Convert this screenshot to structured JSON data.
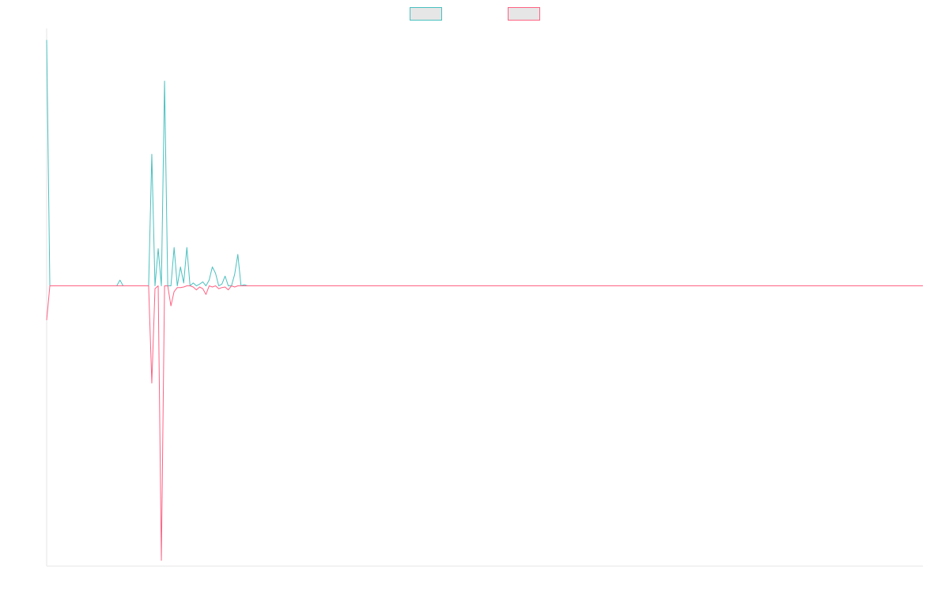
{
  "chart_data": {
    "type": "line",
    "title": "",
    "xlabel": "",
    "ylabel": "",
    "grid": false,
    "legend_position": "top-center",
    "x_count": 276,
    "xlim": [
      0,
      275
    ],
    "ylim": [
      -49,
      45
    ],
    "series": [
      {
        "color": "#4bc0c0",
        "fill": "#e6e6e6",
        "points": [
          [
            0,
            43
          ],
          [
            1,
            0
          ],
          [
            22,
            0
          ],
          [
            23,
            1
          ],
          [
            24,
            0
          ],
          [
            32,
            0
          ],
          [
            33,
            23
          ],
          [
            34,
            0
          ],
          [
            35,
            6.5
          ],
          [
            36,
            0
          ],
          [
            37,
            35.8
          ],
          [
            38,
            0
          ],
          [
            39,
            0
          ],
          [
            40,
            6.7
          ],
          [
            41,
            0
          ],
          [
            42,
            3.3
          ],
          [
            43,
            0.5
          ],
          [
            44,
            6.7
          ],
          [
            45,
            0
          ],
          [
            46,
            0.5
          ],
          [
            47,
            0
          ],
          [
            48,
            0.3
          ],
          [
            49,
            0.7
          ],
          [
            50,
            0
          ],
          [
            51,
            1
          ],
          [
            52,
            3.3
          ],
          [
            53,
            2.2
          ],
          [
            54,
            0
          ],
          [
            55,
            0.3
          ],
          [
            56,
            1.7
          ],
          [
            57,
            0
          ],
          [
            58,
            0
          ],
          [
            59,
            2
          ],
          [
            60,
            5.5
          ],
          [
            61,
            0
          ],
          [
            62,
            0.2
          ],
          [
            63,
            0
          ],
          [
            275,
            0
          ]
        ]
      },
      {
        "color": "#ff6384",
        "fill": "#e6e6e6",
        "points": [
          [
            0,
            -6
          ],
          [
            1,
            0
          ],
          [
            32,
            0
          ],
          [
            33,
            -17
          ],
          [
            34,
            -0.5
          ],
          [
            35,
            0
          ],
          [
            36,
            -48
          ],
          [
            37,
            0
          ],
          [
            38,
            0
          ],
          [
            39,
            -3.5
          ],
          [
            40,
            -1
          ],
          [
            41,
            -0.3
          ],
          [
            42,
            -0.3
          ],
          [
            43,
            -0.2
          ],
          [
            44,
            0
          ],
          [
            45,
            0
          ],
          [
            46,
            -0.2
          ],
          [
            47,
            -0.7
          ],
          [
            48,
            -0.2
          ],
          [
            49,
            -0.5
          ],
          [
            50,
            -1.5
          ],
          [
            51,
            0
          ],
          [
            52,
            -0.2
          ],
          [
            53,
            0
          ],
          [
            54,
            -0.5
          ],
          [
            55,
            -0.3
          ],
          [
            56,
            -0.2
          ],
          [
            57,
            -0.7
          ],
          [
            58,
            0
          ],
          [
            59,
            -0.2
          ],
          [
            60,
            0
          ],
          [
            275,
            0
          ]
        ]
      }
    ]
  }
}
